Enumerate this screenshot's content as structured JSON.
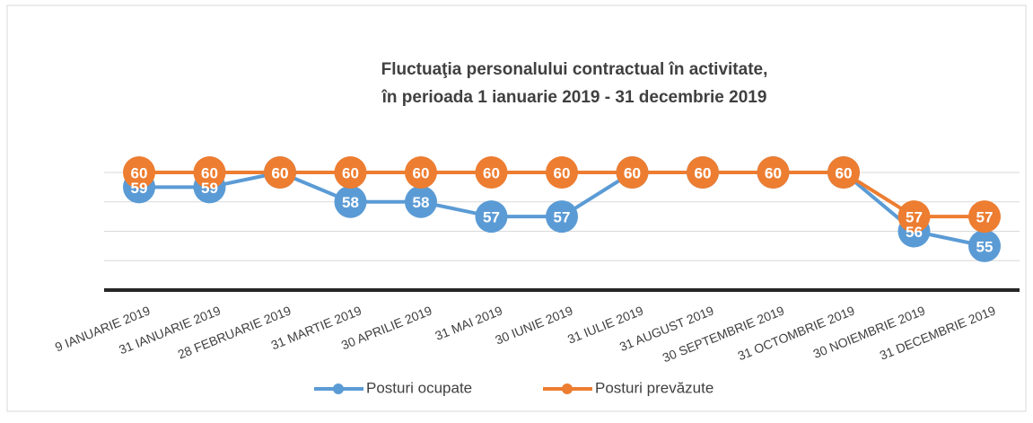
{
  "chart_data": {
    "type": "line",
    "title": [
      "Fluctuaţia personalului contractual în activitate,",
      "în perioada 1 ianuarie 2019 - 31 decembrie 2019"
    ],
    "categories": [
      "9 IANUARIE 2019",
      "31 IANUARIE 2019",
      "28 FEBRUARIE 2019",
      "31 MARTIE 2019",
      "30 APRILIE 2019",
      "31 MAI 2019",
      "30 IUNIE 2019",
      "31 IULIE 2019",
      "31 AUGUST 2019",
      "30 SEPTEMBRIE 2019",
      "31 OCTOMBRIE 2019",
      "30 NOIEMBRIE 2019",
      "31 DECEMBRIE 2019"
    ],
    "series": [
      {
        "name": "Posturi ocupate",
        "color": "#5b9bd5",
        "values": [
          59,
          59,
          60,
          58,
          58,
          57,
          57,
          60,
          60,
          60,
          60,
          56,
          55
        ]
      },
      {
        "name": "Posturi prevăzute",
        "color": "#ed7d31",
        "values": [
          60,
          60,
          60,
          60,
          60,
          60,
          60,
          60,
          60,
          60,
          60,
          57,
          57
        ]
      }
    ],
    "ylim": [
      52,
      60
    ],
    "yticks": [
      52,
      54,
      56,
      58,
      60
    ],
    "grid": true,
    "legend": "bottom"
  }
}
